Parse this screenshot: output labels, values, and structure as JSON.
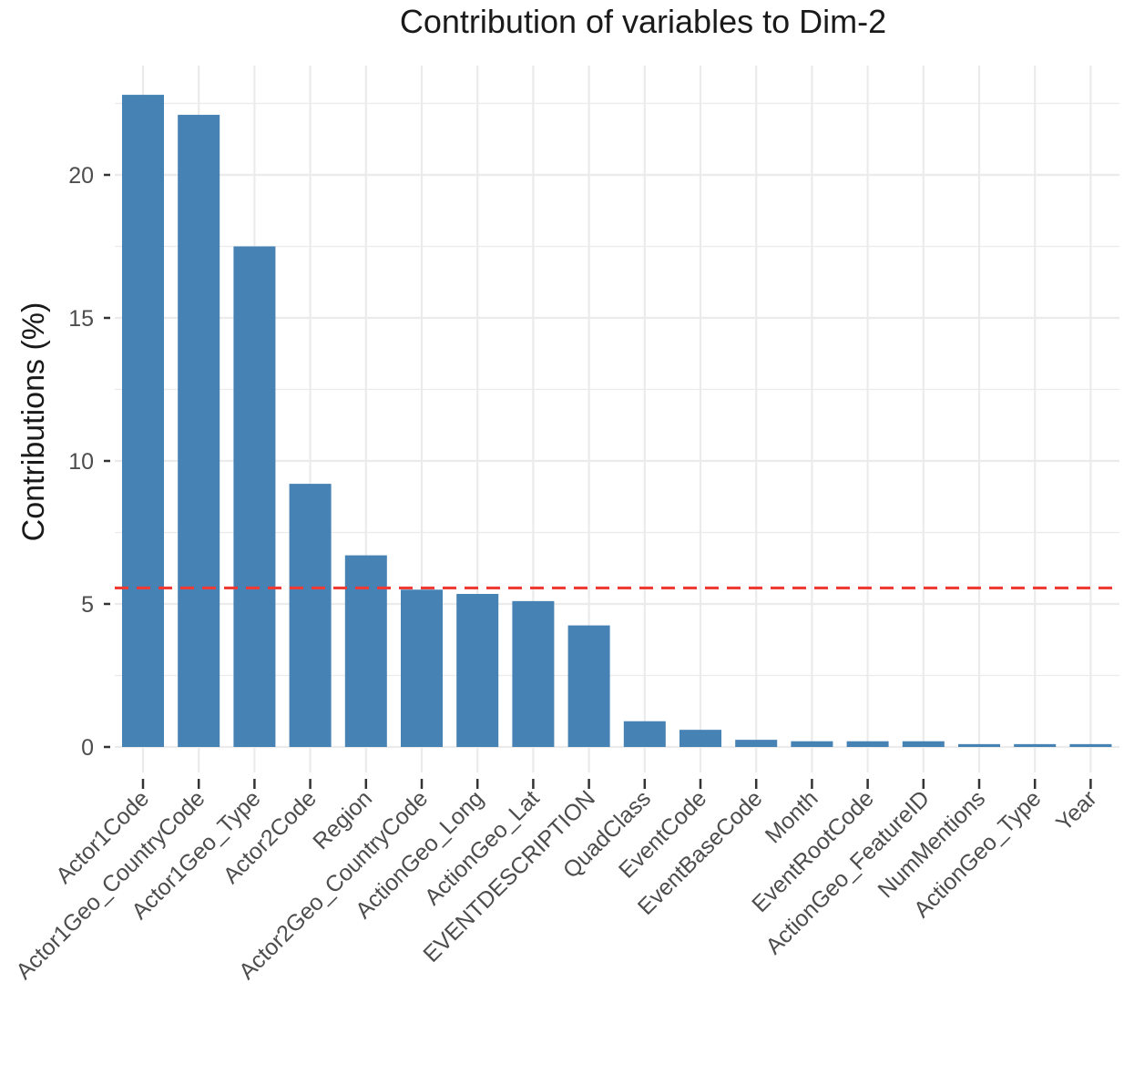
{
  "chart_data": {
    "type": "bar",
    "title": "Contribution of variables to Dim-2",
    "xlabel": "",
    "ylabel": "Contributions (%)",
    "ylim": [
      0,
      23
    ],
    "yticks": [
      0,
      5,
      10,
      15,
      20
    ],
    "grid": true,
    "categories": [
      "Actor1Code",
      "Actor1Geo_CountryCode",
      "Actor1Geo_Type",
      "Actor2Code",
      "Region",
      "Actor2Geo_CountryCode",
      "ActionGeo_Long",
      "ActionGeo_Lat",
      "EVENTDESCRIPTION",
      "QuadClass",
      "EventCode",
      "EventBaseCode",
      "Month",
      "EventRootCode",
      "ActionGeo_FeatureID",
      "NumMentions",
      "ActionGeo_Type",
      "Year"
    ],
    "values": [
      22.8,
      22.1,
      17.5,
      9.2,
      6.7,
      5.5,
      5.35,
      5.1,
      4.25,
      0.9,
      0.6,
      0.25,
      0.2,
      0.2,
      0.2,
      0.1,
      0.1,
      0.1
    ],
    "reference_line": 5.56,
    "colors": {
      "bar": "#4682b4",
      "reference_line": "#f03b35",
      "grid": "#ebebeb",
      "background": "#ffffff",
      "tick": "#333333"
    }
  }
}
